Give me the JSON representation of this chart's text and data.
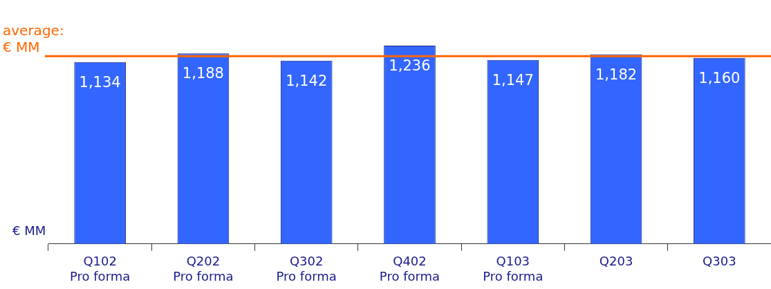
{
  "chart_data": {
    "type": "bar",
    "ylabel": "€ MM",
    "categories": [
      "Q102\nPro forma",
      "Q202\nPro forma",
      "Q302\nPro forma",
      "Q402\nPro forma",
      "Q103\nPro forma",
      "Q203",
      "Q303"
    ],
    "values": [
      1134,
      1188,
      1142,
      1236,
      1147,
      1182,
      1160
    ],
    "color": "#3366ff",
    "value_labels": [
      "1,134",
      "1,188",
      "1,142",
      "1,236",
      "1,147",
      "1,182",
      "1,160"
    ],
    "ref_lines": [
      {
        "axis": "y",
        "value": 1170,
        "label": "average:\n€ MM",
        "color": "#ff6600"
      }
    ],
    "grid": false,
    "legend": false
  }
}
